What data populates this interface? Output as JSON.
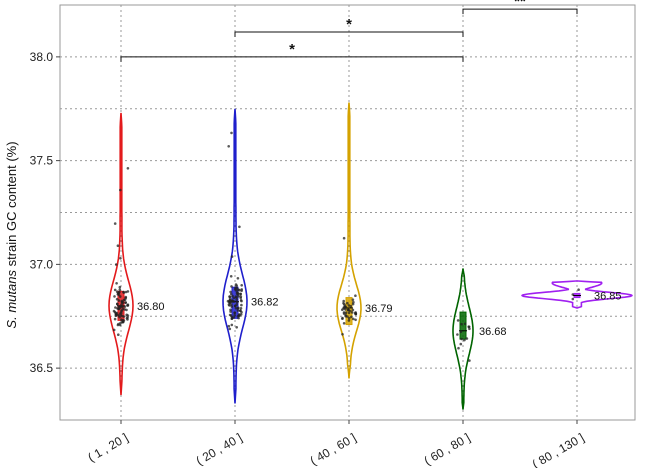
{
  "chart_data": {
    "type": "violin",
    "ylabel_italic": "S. mutans",
    "ylabel_rest": " strain GC content (%)",
    "categories": [
      "( 1 , 20 ]",
      "( 20 , 40 ]",
      "( 40 , 60 ]",
      "( 60 , 80 ]",
      "( 80 , 130 ]"
    ],
    "ylim": [
      36.25,
      38.25
    ],
    "yticks": [
      "36.5",
      "37.0",
      "37.5",
      "38.0"
    ],
    "grid": true,
    "colors": [
      "#e31a1c",
      "#1f1fcc",
      "#d4a200",
      "#006400",
      "#a020f0"
    ],
    "series": [
      {
        "category": "( 1 , 20 ]",
        "median": 36.8,
        "median_label": "36.80",
        "min": 36.37,
        "max": 37.73,
        "q1": 36.73,
        "q3": 36.87
      },
      {
        "category": "( 20 , 40 ]",
        "median": 36.82,
        "median_label": "36.82",
        "min": 36.33,
        "max": 37.75,
        "q1": 36.74,
        "q3": 36.89
      },
      {
        "category": "( 40 , 60 ]",
        "median": 36.79,
        "median_label": "36.79",
        "min": 36.45,
        "max": 37.78,
        "q1": 36.71,
        "q3": 36.84
      },
      {
        "category": "( 60 , 80 ]",
        "median": 36.68,
        "median_label": "36.68",
        "min": 36.3,
        "max": 36.98,
        "q1": 36.64,
        "q3": 36.77
      },
      {
        "category": "( 80 , 130 ]",
        "median": 36.85,
        "median_label": "36.85",
        "min": 36.79,
        "max": 36.92,
        "q1": 36.84,
        "q3": 36.86
      }
    ],
    "significance": [
      {
        "from": 0,
        "to": 3,
        "y": 38.0,
        "label": "*"
      },
      {
        "from": 1,
        "to": 3,
        "y": 38.12,
        "label": "*"
      },
      {
        "from": 3,
        "to": 4,
        "y": 38.23,
        "label": "**"
      }
    ]
  }
}
